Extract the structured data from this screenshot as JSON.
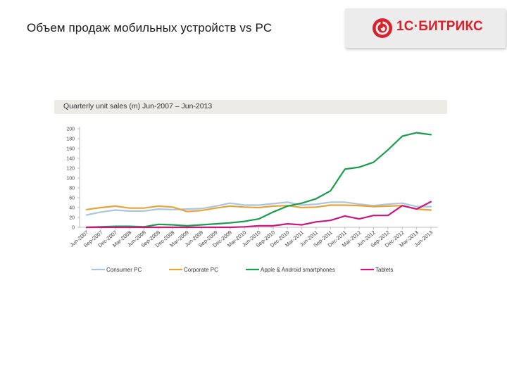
{
  "slide": {
    "title": "Объем продаж мобильных устройств vs PC"
  },
  "logo": {
    "text": "1С·БИТРИКС",
    "color": "#d9212b"
  },
  "chart_data": {
    "type": "line",
    "title": "Quarterly unit sales (m)   Jun-2007 – Jun-2013",
    "xlabel": "",
    "ylabel": "",
    "ylim": [
      0,
      200
    ],
    "yticks": [
      0,
      20,
      40,
      60,
      80,
      100,
      120,
      140,
      160,
      180,
      200
    ],
    "grid": false,
    "legend_position": "bottom",
    "categories": [
      "Jun-2007",
      "Sep-2007",
      "Dec-2007",
      "Mar-2008",
      "Jun-2008",
      "Sep-2008",
      "Dec-2008",
      "Mar-2009",
      "Jun-2009",
      "Sep-2009",
      "Dec-2009",
      "Mar-2010",
      "Jun-2010",
      "Sep-2010",
      "Dec-2010",
      "Mar-2011",
      "Jun-2011",
      "Sep-2011",
      "Dec-2011",
      "Mar-2012",
      "Jun-2012",
      "Sep-2012",
      "Dec-2012",
      "Mar-2013",
      "Jun-2013"
    ],
    "series": [
      {
        "name": "Consumer PC",
        "color": "#aac6dc",
        "values": [
          25,
          31,
          35,
          33,
          33,
          37,
          36,
          37,
          38,
          43,
          49,
          45,
          45,
          48,
          51,
          45,
          47,
          51,
          51,
          47,
          44,
          47,
          49,
          42,
          42
        ]
      },
      {
        "name": "Corporate PC",
        "color": "#e8a33a",
        "values": [
          36,
          40,
          43,
          39,
          39,
          43,
          41,
          32,
          34,
          39,
          43,
          41,
          40,
          43,
          44,
          40,
          41,
          45,
          45,
          44,
          42,
          43,
          44,
          37,
          35
        ]
      },
      {
        "name": "Apple & Android smartphones",
        "color": "#1a9e4e",
        "values": [
          0,
          1,
          2,
          2,
          1,
          6,
          5,
          3,
          5,
          7,
          9,
          12,
          17,
          31,
          43,
          49,
          58,
          74,
          118,
          122,
          132,
          157,
          185,
          192,
          188
        ]
      },
      {
        "name": "Tablets",
        "color": "#c8197e",
        "values": [
          0,
          0,
          0,
          0,
          0,
          0,
          0,
          0,
          0,
          0,
          0,
          1,
          3,
          3,
          7,
          5,
          11,
          14,
          23,
          17,
          24,
          24,
          44,
          37,
          52
        ]
      }
    ]
  }
}
